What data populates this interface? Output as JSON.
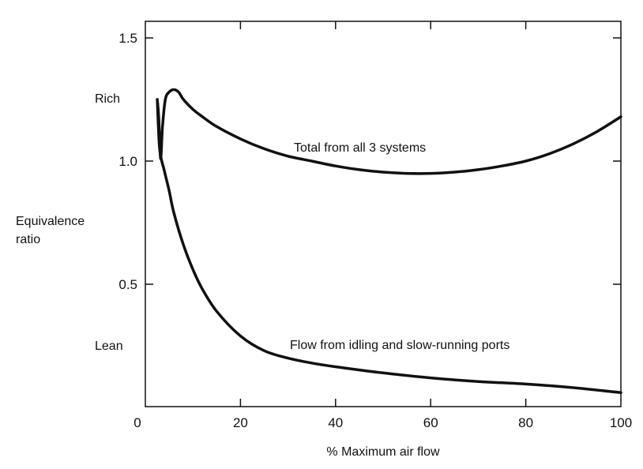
{
  "chart_data": {
    "type": "line",
    "title": "",
    "xlabel": "% Maximum air flow",
    "ylabel_lines": [
      "Equivalence",
      "ratio"
    ],
    "xlim": [
      0,
      100
    ],
    "ylim": [
      0,
      1.6
    ],
    "x_ticks": [
      "0",
      "20",
      "40",
      "60",
      "80",
      "100"
    ],
    "y_ticks": [
      "0.5",
      "1.0",
      "1.5"
    ],
    "y_tick_values": [
      0.5,
      1.0,
      1.5
    ],
    "side_labels": {
      "rich": "Rich",
      "lean": "Lean"
    },
    "grid": false,
    "series": [
      {
        "name": "Total from all 3 systems",
        "x": [
          2.5,
          2.8,
          3.2,
          3.6,
          4.2,
          5.0,
          6.0,
          7.0,
          8.0,
          10,
          12,
          15,
          20,
          25,
          30,
          35,
          40,
          45,
          50,
          55,
          60,
          65,
          70,
          75,
          80,
          85,
          90,
          95,
          100
        ],
        "y": [
          1.25,
          1.18,
          1.01,
          1.14,
          1.25,
          1.28,
          1.29,
          1.28,
          1.25,
          1.21,
          1.18,
          1.14,
          1.09,
          1.05,
          1.02,
          1.0,
          0.98,
          0.965,
          0.955,
          0.95,
          0.95,
          0.955,
          0.965,
          0.98,
          1.0,
          1.03,
          1.07,
          1.12,
          1.18
        ]
      },
      {
        "name": "Flow from idling and slow-running ports",
        "x": [
          2.5,
          3.0,
          4.0,
          5.0,
          6.0,
          8.0,
          10,
          12,
          15,
          20,
          25,
          30,
          35,
          40,
          50,
          60,
          70,
          80,
          90,
          100
        ],
        "y": [
          1.25,
          1.05,
          0.96,
          0.88,
          0.79,
          0.66,
          0.56,
          0.48,
          0.39,
          0.29,
          0.23,
          0.2,
          0.18,
          0.165,
          0.14,
          0.12,
          0.105,
          0.095,
          0.08,
          0.06
        ]
      }
    ]
  }
}
